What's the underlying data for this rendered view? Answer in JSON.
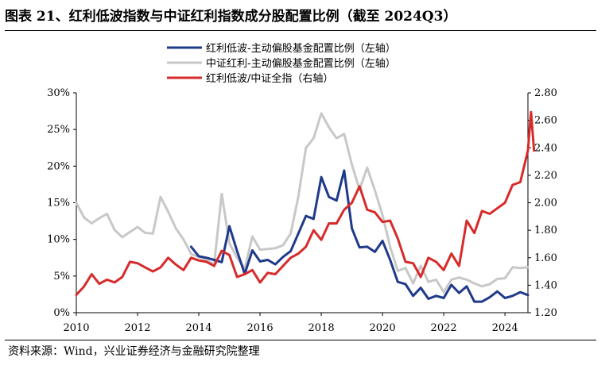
{
  "title": "图表 21、红利低波指数与中证红利指数成分股配置比例（截至 2024Q3）",
  "source": "资料来源：Wind，兴业证券经济与金融研究院整理",
  "colors": {
    "navy": "#1f3a8a",
    "gray": "#c8c8c8",
    "red": "#d72b2b"
  },
  "chart_data": {
    "type": "line",
    "title": "图表 21、红利低波指数与中证红利指数成分股配置比例（截至 2024Q3）",
    "xlabel": "",
    "ylabel_left": "",
    "ylabel_right": "",
    "xlim": [
      2010,
      2024.75
    ],
    "ylim_left": [
      0,
      30
    ],
    "ylim_right": [
      1.2,
      2.8
    ],
    "x_ticks": [
      "2010",
      "2012",
      "2014",
      "2016",
      "2018",
      "2020",
      "2022",
      "2024"
    ],
    "y_left_ticks": [
      "0%",
      "5%",
      "10%",
      "15%",
      "20%",
      "25%",
      "30%"
    ],
    "y_right_ticks": [
      "1.20",
      "1.40",
      "1.60",
      "1.80",
      "2.00",
      "2.20",
      "2.40",
      "2.60",
      "2.80"
    ],
    "grid": false,
    "legend": "top-left",
    "series": [
      {
        "name": "红利低波-主动偏股基金配置比例（左轴）",
        "axis": "left",
        "color": "#1f3a8a",
        "points": [
          [
            2013.75,
            9.0
          ],
          [
            2014.0,
            7.7
          ],
          [
            2014.25,
            7.5
          ],
          [
            2014.5,
            7.2
          ],
          [
            2014.75,
            6.9
          ],
          [
            2015.0,
            11.8
          ],
          [
            2015.25,
            8.4
          ],
          [
            2015.5,
            5.3
          ],
          [
            2015.75,
            8.5
          ],
          [
            2016.0,
            7.0
          ],
          [
            2016.25,
            7.2
          ],
          [
            2016.5,
            6.6
          ],
          [
            2016.75,
            7.6
          ],
          [
            2017.0,
            8.4
          ],
          [
            2017.25,
            10.8
          ],
          [
            2017.5,
            13.2
          ],
          [
            2017.75,
            12.8
          ],
          [
            2018.0,
            18.5
          ],
          [
            2018.25,
            15.8
          ],
          [
            2018.5,
            15.3
          ],
          [
            2018.75,
            19.4
          ],
          [
            2019.0,
            11.5
          ],
          [
            2019.25,
            8.9
          ],
          [
            2019.5,
            9.0
          ],
          [
            2019.75,
            8.3
          ],
          [
            2020.0,
            9.8
          ],
          [
            2020.25,
            7.2
          ],
          [
            2020.5,
            4.2
          ],
          [
            2020.75,
            3.9
          ],
          [
            2021.0,
            2.3
          ],
          [
            2021.25,
            3.4
          ],
          [
            2021.5,
            1.9
          ],
          [
            2021.75,
            2.3
          ],
          [
            2022.0,
            2.0
          ],
          [
            2022.25,
            3.8
          ],
          [
            2022.5,
            2.7
          ],
          [
            2022.75,
            3.6
          ],
          [
            2023.0,
            1.5
          ],
          [
            2023.25,
            1.5
          ],
          [
            2023.5,
            2.1
          ],
          [
            2023.75,
            2.9
          ],
          [
            2024.0,
            2.0
          ],
          [
            2024.25,
            2.3
          ],
          [
            2024.5,
            2.8
          ],
          [
            2024.75,
            2.4
          ]
        ]
      },
      {
        "name": "中证红利-主动偏股基金配置比例（左轴）",
        "axis": "left",
        "color": "#c8c8c8",
        "points": [
          [
            2010.0,
            15.0
          ],
          [
            2010.25,
            13.0
          ],
          [
            2010.5,
            12.2
          ],
          [
            2010.75,
            12.9
          ],
          [
            2011.0,
            13.5
          ],
          [
            2011.25,
            11.3
          ],
          [
            2011.5,
            10.3
          ],
          [
            2011.75,
            11.0
          ],
          [
            2012.0,
            11.7
          ],
          [
            2012.25,
            10.9
          ],
          [
            2012.5,
            10.8
          ],
          [
            2012.75,
            15.8
          ],
          [
            2013.0,
            13.8
          ],
          [
            2013.25,
            11.5
          ],
          [
            2013.5,
            10.0
          ],
          [
            2013.75,
            8.0
          ],
          [
            2014.0,
            7.6
          ],
          [
            2014.25,
            7.2
          ],
          [
            2014.5,
            6.6
          ],
          [
            2014.75,
            16.2
          ],
          [
            2015.0,
            9.5
          ],
          [
            2015.25,
            7.5
          ],
          [
            2015.5,
            6.0
          ],
          [
            2015.75,
            10.4
          ],
          [
            2016.0,
            8.6
          ],
          [
            2016.25,
            8.7
          ],
          [
            2016.5,
            8.8
          ],
          [
            2016.75,
            9.2
          ],
          [
            2017.0,
            10.8
          ],
          [
            2017.25,
            15.8
          ],
          [
            2017.5,
            22.5
          ],
          [
            2017.75,
            23.8
          ],
          [
            2018.0,
            27.2
          ],
          [
            2018.25,
            25.3
          ],
          [
            2018.5,
            23.8
          ],
          [
            2018.75,
            24.4
          ],
          [
            2019.0,
            20.2
          ],
          [
            2019.25,
            16.8
          ],
          [
            2019.5,
            19.8
          ],
          [
            2019.75,
            16.7
          ],
          [
            2020.0,
            13.3
          ],
          [
            2020.25,
            9.0
          ],
          [
            2020.5,
            5.7
          ],
          [
            2020.75,
            6.1
          ],
          [
            2021.0,
            4.0
          ],
          [
            2021.25,
            6.4
          ],
          [
            2021.5,
            4.2
          ],
          [
            2021.75,
            4.5
          ],
          [
            2022.0,
            2.8
          ],
          [
            2022.25,
            4.5
          ],
          [
            2022.5,
            4.8
          ],
          [
            2022.75,
            4.5
          ],
          [
            2023.0,
            4.0
          ],
          [
            2023.25,
            3.6
          ],
          [
            2023.5,
            3.9
          ],
          [
            2023.75,
            4.6
          ],
          [
            2024.0,
            4.7
          ],
          [
            2024.25,
            6.2
          ],
          [
            2024.5,
            6.1
          ],
          [
            2024.75,
            6.2
          ]
        ]
      },
      {
        "name": "红利低波/中证全指（右轴）",
        "axis": "right",
        "color": "#d72b2b",
        "points": [
          [
            2010.0,
            1.33
          ],
          [
            2010.25,
            1.39
          ],
          [
            2010.5,
            1.48
          ],
          [
            2010.75,
            1.41
          ],
          [
            2011.0,
            1.44
          ],
          [
            2011.25,
            1.42
          ],
          [
            2011.5,
            1.46
          ],
          [
            2011.75,
            1.57
          ],
          [
            2012.0,
            1.56
          ],
          [
            2012.25,
            1.53
          ],
          [
            2012.5,
            1.5
          ],
          [
            2012.75,
            1.53
          ],
          [
            2013.0,
            1.6
          ],
          [
            2013.25,
            1.55
          ],
          [
            2013.5,
            1.51
          ],
          [
            2013.75,
            1.6
          ],
          [
            2014.0,
            1.58
          ],
          [
            2014.25,
            1.57
          ],
          [
            2014.5,
            1.54
          ],
          [
            2014.75,
            1.65
          ],
          [
            2015.0,
            1.62
          ],
          [
            2015.25,
            1.46
          ],
          [
            2015.5,
            1.48
          ],
          [
            2015.75,
            1.51
          ],
          [
            2016.0,
            1.42
          ],
          [
            2016.25,
            1.49
          ],
          [
            2016.5,
            1.48
          ],
          [
            2016.75,
            1.54
          ],
          [
            2017.0,
            1.6
          ],
          [
            2017.25,
            1.63
          ],
          [
            2017.5,
            1.68
          ],
          [
            2017.75,
            1.8
          ],
          [
            2018.0,
            1.73
          ],
          [
            2018.25,
            1.85
          ],
          [
            2018.5,
            1.85
          ],
          [
            2018.75,
            1.95
          ],
          [
            2019.0,
            2.0
          ],
          [
            2019.25,
            2.12
          ],
          [
            2019.5,
            1.95
          ],
          [
            2019.75,
            1.93
          ],
          [
            2020.0,
            1.86
          ],
          [
            2020.25,
            1.87
          ],
          [
            2020.5,
            1.74
          ],
          [
            2020.75,
            1.57
          ],
          [
            2021.0,
            1.56
          ],
          [
            2021.25,
            1.46
          ],
          [
            2021.5,
            1.6
          ],
          [
            2021.75,
            1.57
          ],
          [
            2022.0,
            1.51
          ],
          [
            2022.25,
            1.63
          ],
          [
            2022.5,
            1.54
          ],
          [
            2022.75,
            1.87
          ],
          [
            2023.0,
            1.78
          ],
          [
            2023.25,
            1.94
          ],
          [
            2023.5,
            1.92
          ],
          [
            2023.75,
            1.96
          ],
          [
            2024.0,
            2.0
          ],
          [
            2024.25,
            2.13
          ],
          [
            2024.5,
            2.15
          ],
          [
            2024.75,
            2.38
          ],
          [
            2024.85,
            2.66
          ],
          [
            2024.95,
            2.38
          ]
        ]
      }
    ]
  }
}
